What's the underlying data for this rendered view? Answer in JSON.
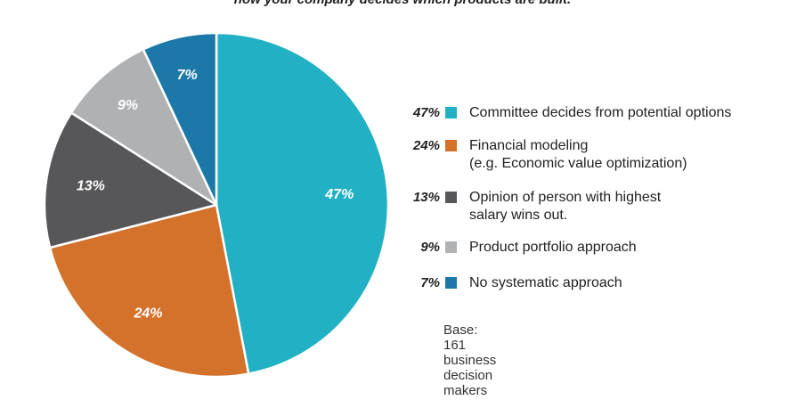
{
  "header": {
    "caption": "how your company decides which products are built."
  },
  "chart_data": {
    "type": "pie",
    "categories": [
      "Committee decides from potential options",
      "Financial modeling\n(e.g. Economic value optimization)",
      "Opinion of person with highest\nsalary wins out.",
      "Product portfolio approach",
      "No systematic approach"
    ],
    "values": [
      47,
      24,
      13,
      9,
      7
    ],
    "labels": [
      "47%",
      "24%",
      "13%",
      "9%",
      "7%"
    ],
    "colors": [
      "#22b1c4",
      "#d4712b",
      "#57575a",
      "#b0b1b3",
      "#1b78a9"
    ],
    "legend_placement": "right",
    "grid": false
  },
  "footnote": "Base: 161 business decision makers"
}
